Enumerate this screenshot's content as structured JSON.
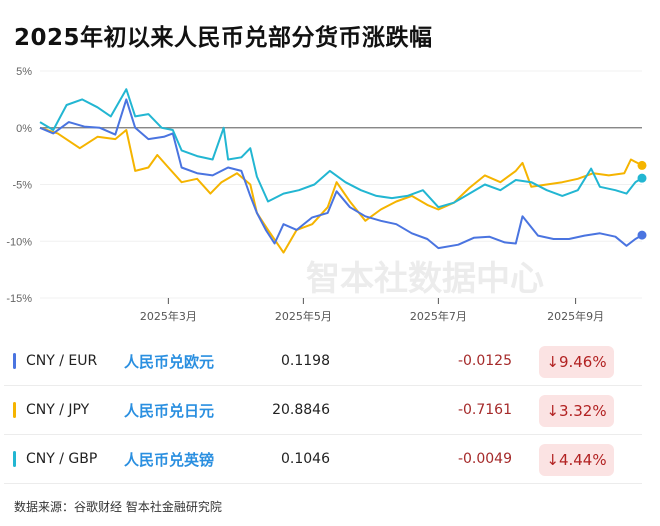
{
  "title": "2025年初以来人民币兑部分货币涨跌幅",
  "watermark": "智本社数据中心",
  "chart_data": {
    "type": "line",
    "title": "2025年初以来人民币兑部分货币涨跌幅",
    "ylim": [
      -15,
      5
    ],
    "yticks": [
      5,
      0,
      -5,
      -10,
      -15
    ],
    "ytick_labels": [
      "5%",
      "0%",
      "-5%",
      "-10%",
      "-15%"
    ],
    "xticks": [
      "2025-03-01",
      "2025-05-01",
      "2025-07-01",
      "2025-09-01"
    ],
    "xtick_labels": [
      "2025年3月",
      "2025年5月",
      "2025年7月",
      "2025年9月"
    ],
    "xrange": [
      "2025-01-02",
      "2025-10-01"
    ],
    "grid": true,
    "series": [
      {
        "name": "CNY / EUR",
        "color": "#4a74e0",
        "points": [
          [
            "2025-01-02",
            0
          ],
          [
            "2025-01-08",
            -0.5
          ],
          [
            "2025-01-15",
            0.5
          ],
          [
            "2025-01-22",
            0.1
          ],
          [
            "2025-01-29",
            0
          ],
          [
            "2025-02-05",
            -0.6
          ],
          [
            "2025-02-10",
            2.5
          ],
          [
            "2025-02-14",
            0
          ],
          [
            "2025-02-20",
            -1
          ],
          [
            "2025-02-27",
            -0.8
          ],
          [
            "2025-03-03",
            -0.5
          ],
          [
            "2025-03-07",
            -3.5
          ],
          [
            "2025-03-14",
            -4.0
          ],
          [
            "2025-03-21",
            -4.2
          ],
          [
            "2025-03-28",
            -3.5
          ],
          [
            "2025-04-03",
            -3.8
          ],
          [
            "2025-04-07",
            -6
          ],
          [
            "2025-04-10",
            -7.5
          ],
          [
            "2025-04-14",
            -9
          ],
          [
            "2025-04-18",
            -10.2
          ],
          [
            "2025-04-22",
            -8.5
          ],
          [
            "2025-04-28",
            -9
          ],
          [
            "2025-05-05",
            -7.9
          ],
          [
            "2025-05-12",
            -7.5
          ],
          [
            "2025-05-16",
            -5.6
          ],
          [
            "2025-05-22",
            -7.0
          ],
          [
            "2025-05-29",
            -7.8
          ],
          [
            "2025-06-05",
            -8.2
          ],
          [
            "2025-06-12",
            -8.5
          ],
          [
            "2025-06-19",
            -9.3
          ],
          [
            "2025-06-26",
            -9.8
          ],
          [
            "2025-07-01",
            -10.6
          ],
          [
            "2025-07-10",
            -10.3
          ],
          [
            "2025-07-17",
            -9.7
          ],
          [
            "2025-07-24",
            -9.6
          ],
          [
            "2025-07-31",
            -10.1
          ],
          [
            "2025-08-05",
            -10.2
          ],
          [
            "2025-08-08",
            -7.8
          ],
          [
            "2025-08-15",
            -9.5
          ],
          [
            "2025-08-22",
            -9.8
          ],
          [
            "2025-08-29",
            -9.8
          ],
          [
            "2025-09-05",
            -9.5
          ],
          [
            "2025-09-12",
            -9.3
          ],
          [
            "2025-09-19",
            -9.6
          ],
          [
            "2025-09-24",
            -10.4
          ],
          [
            "2025-09-28",
            -9.8
          ],
          [
            "2025-10-01",
            -9.46
          ]
        ]
      },
      {
        "name": "CNY / JPY",
        "color": "#f5b400",
        "points": [
          [
            "2025-01-02",
            0
          ],
          [
            "2025-01-10",
            -0.5
          ],
          [
            "2025-01-20",
            -1.8
          ],
          [
            "2025-01-28",
            -0.8
          ],
          [
            "2025-02-05",
            -1.0
          ],
          [
            "2025-02-10",
            -0.2
          ],
          [
            "2025-02-14",
            -3.8
          ],
          [
            "2025-02-20",
            -3.5
          ],
          [
            "2025-02-24",
            -2.4
          ],
          [
            "2025-03-01",
            -3.5
          ],
          [
            "2025-03-07",
            -4.8
          ],
          [
            "2025-03-14",
            -4.5
          ],
          [
            "2025-03-20",
            -5.8
          ],
          [
            "2025-03-25",
            -4.8
          ],
          [
            "2025-04-01",
            -4.0
          ],
          [
            "2025-04-07",
            -5
          ],
          [
            "2025-04-10",
            -7.5
          ],
          [
            "2025-04-15",
            -9
          ],
          [
            "2025-04-22",
            -11
          ],
          [
            "2025-04-28",
            -9
          ],
          [
            "2025-05-05",
            -8.5
          ],
          [
            "2025-05-12",
            -7.0
          ],
          [
            "2025-05-16",
            -4.8
          ],
          [
            "2025-05-22",
            -6.5
          ],
          [
            "2025-05-29",
            -8.2
          ],
          [
            "2025-06-05",
            -7.2
          ],
          [
            "2025-06-12",
            -6.5
          ],
          [
            "2025-06-19",
            -6.0
          ],
          [
            "2025-06-26",
            -6.8
          ],
          [
            "2025-07-01",
            -7.2
          ],
          [
            "2025-07-08",
            -6.6
          ],
          [
            "2025-07-15",
            -5.3
          ],
          [
            "2025-07-22",
            -4.2
          ],
          [
            "2025-07-29",
            -4.8
          ],
          [
            "2025-08-05",
            -3.8
          ],
          [
            "2025-08-08",
            -3.1
          ],
          [
            "2025-08-12",
            -5.2
          ],
          [
            "2025-08-19",
            -5.0
          ],
          [
            "2025-08-26",
            -4.8
          ],
          [
            "2025-09-02",
            -4.5
          ],
          [
            "2025-09-09",
            -4.0
          ],
          [
            "2025-09-16",
            -4.2
          ],
          [
            "2025-09-23",
            -4.0
          ],
          [
            "2025-09-26",
            -2.8
          ],
          [
            "2025-10-01",
            -3.32
          ]
        ]
      },
      {
        "name": "CNY / GBP",
        "color": "#22b6d2",
        "points": [
          [
            "2025-01-02",
            0.5
          ],
          [
            "2025-01-08",
            -0.2
          ],
          [
            "2025-01-14",
            2.0
          ],
          [
            "2025-01-21",
            2.5
          ],
          [
            "2025-01-28",
            1.8
          ],
          [
            "2025-02-03",
            1.0
          ],
          [
            "2025-02-10",
            3.4
          ],
          [
            "2025-02-14",
            1.0
          ],
          [
            "2025-02-20",
            1.2
          ],
          [
            "2025-02-26",
            0
          ],
          [
            "2025-03-03",
            -0.2
          ],
          [
            "2025-03-07",
            -2.0
          ],
          [
            "2025-03-14",
            -2.5
          ],
          [
            "2025-03-21",
            -2.8
          ],
          [
            "2025-03-26",
            0
          ],
          [
            "2025-03-28",
            -2.8
          ],
          [
            "2025-04-03",
            -2.6
          ],
          [
            "2025-04-07",
            -1.8
          ],
          [
            "2025-04-10",
            -4.3
          ],
          [
            "2025-04-15",
            -6.5
          ],
          [
            "2025-04-22",
            -5.8
          ],
          [
            "2025-04-29",
            -5.5
          ],
          [
            "2025-05-06",
            -5.0
          ],
          [
            "2025-05-13",
            -3.8
          ],
          [
            "2025-05-20",
            -4.8
          ],
          [
            "2025-05-27",
            -5.5
          ],
          [
            "2025-06-03",
            -6.0
          ],
          [
            "2025-06-10",
            -6.2
          ],
          [
            "2025-06-17",
            -6.0
          ],
          [
            "2025-06-24",
            -5.5
          ],
          [
            "2025-07-01",
            -7.0
          ],
          [
            "2025-07-08",
            -6.6
          ],
          [
            "2025-07-15",
            -5.8
          ],
          [
            "2025-07-22",
            -5.0
          ],
          [
            "2025-07-29",
            -5.5
          ],
          [
            "2025-08-05",
            -4.6
          ],
          [
            "2025-08-12",
            -4.8
          ],
          [
            "2025-08-19",
            -5.5
          ],
          [
            "2025-08-26",
            -6.0
          ],
          [
            "2025-09-02",
            -5.5
          ],
          [
            "2025-09-08",
            -3.6
          ],
          [
            "2025-09-12",
            -5.2
          ],
          [
            "2025-09-19",
            -5.5
          ],
          [
            "2025-09-24",
            -5.8
          ],
          [
            "2025-09-28",
            -4.8
          ],
          [
            "2025-10-01",
            -4.44
          ]
        ]
      }
    ]
  },
  "table": [
    {
      "pair": "CNY / EUR",
      "name": "人民币兑欧元",
      "price": "0.1198",
      "change": "-0.0125",
      "pct": "↓9.46%",
      "color": "#4a74e0"
    },
    {
      "pair": "CNY / JPY",
      "name": "人民币兑日元",
      "price": "20.8846",
      "change": "-0.7161",
      "pct": "↓3.32%",
      "color": "#f5b400"
    },
    {
      "pair": "CNY / GBP",
      "name": "人民币兑英镑",
      "price": "0.1046",
      "change": "-0.0049",
      "pct": "↓4.44%",
      "color": "#22b6d2"
    }
  ],
  "source": "数据来源：谷歌财经 智本社金融研究院"
}
